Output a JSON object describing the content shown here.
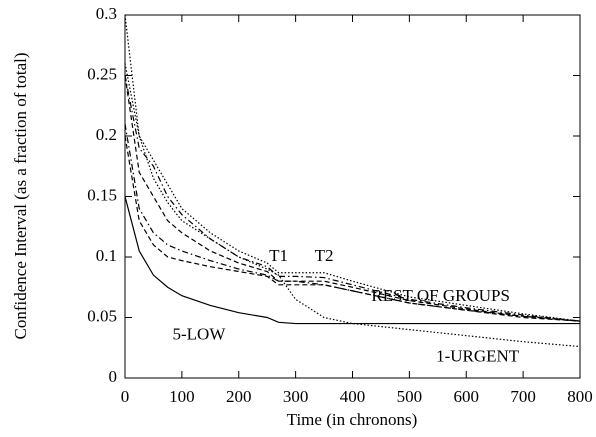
{
  "chart_data": {
    "type": "line",
    "xlabel": "Time (in chronons)",
    "ylabel": "Confidence Interval (as a fraction of total)",
    "x": [
      0,
      25,
      50,
      75,
      100,
      150,
      200,
      250,
      270,
      300,
      350,
      400,
      500,
      600,
      700,
      800
    ],
    "series": [
      {
        "color": "#000000",
        "dash": "solid",
        "values": [
          0.15,
          0.105,
          0.085,
          0.075,
          0.068,
          0.06,
          0.054,
          0.05,
          0.046,
          0.045,
          0.045,
          0.045,
          0.045,
          0.045,
          0.045,
          0.045
        ]
      },
      {
        "color": "#000000",
        "dash": "dotted",
        "values": [
          0.26,
          0.2,
          0.165,
          0.145,
          0.13,
          0.115,
          0.1,
          0.09,
          0.085,
          0.065,
          0.05,
          0.045,
          0.04,
          0.035,
          0.03,
          0.026
        ]
      },
      {
        "color": "#000000",
        "dash": "dotted",
        "values": [
          0.3,
          0.2,
          0.18,
          0.16,
          0.14,
          0.12,
          0.105,
          0.095,
          0.087,
          0.087,
          0.087,
          0.08,
          0.067,
          0.06,
          0.053,
          0.047
        ]
      },
      {
        "color": "#000000",
        "dash": "dashdot",
        "values": [
          0.25,
          0.19,
          0.175,
          0.15,
          0.135,
          0.115,
          0.1,
          0.092,
          0.084,
          0.084,
          0.083,
          0.077,
          0.065,
          0.058,
          0.052,
          0.047
        ]
      },
      {
        "color": "#000000",
        "dash": "dashed",
        "values": [
          0.25,
          0.17,
          0.15,
          0.13,
          0.12,
          0.105,
          0.095,
          0.088,
          0.08,
          0.08,
          0.08,
          0.075,
          0.064,
          0.057,
          0.051,
          0.047
        ]
      },
      {
        "color": "#000000",
        "dash": "dashdot",
        "values": [
          0.21,
          0.14,
          0.12,
          0.11,
          0.105,
          0.097,
          0.09,
          0.085,
          0.08,
          0.08,
          0.077,
          0.072,
          0.062,
          0.056,
          0.051,
          0.047
        ]
      },
      {
        "color": "#000000",
        "dash": "dashed",
        "values": [
          0.2,
          0.13,
          0.11,
          0.1,
          0.097,
          0.092,
          0.088,
          0.084,
          0.077,
          0.077,
          0.077,
          0.072,
          0.062,
          0.056,
          0.05,
          0.047
        ]
      }
    ],
    "annotations": [
      {
        "text": "T1",
        "x": 270,
        "y": 0.1
      },
      {
        "text": "T2",
        "x": 350,
        "y": 0.1
      },
      {
        "text": "REST OF GROUPS",
        "x": 555,
        "y": 0.067
      },
      {
        "text": "5-LOW",
        "x": 130,
        "y": 0.035
      },
      {
        "text": "1-URGENT",
        "x": 620,
        "y": 0.017
      }
    ],
    "xlim": [
      0,
      800
    ],
    "xticks": [
      0,
      100,
      200,
      300,
      400,
      500,
      600,
      700,
      800
    ],
    "ylim": [
      0,
      0.3
    ],
    "yticks": [
      0,
      0.05,
      0.1,
      0.15,
      0.2,
      0.25,
      0.3
    ]
  }
}
